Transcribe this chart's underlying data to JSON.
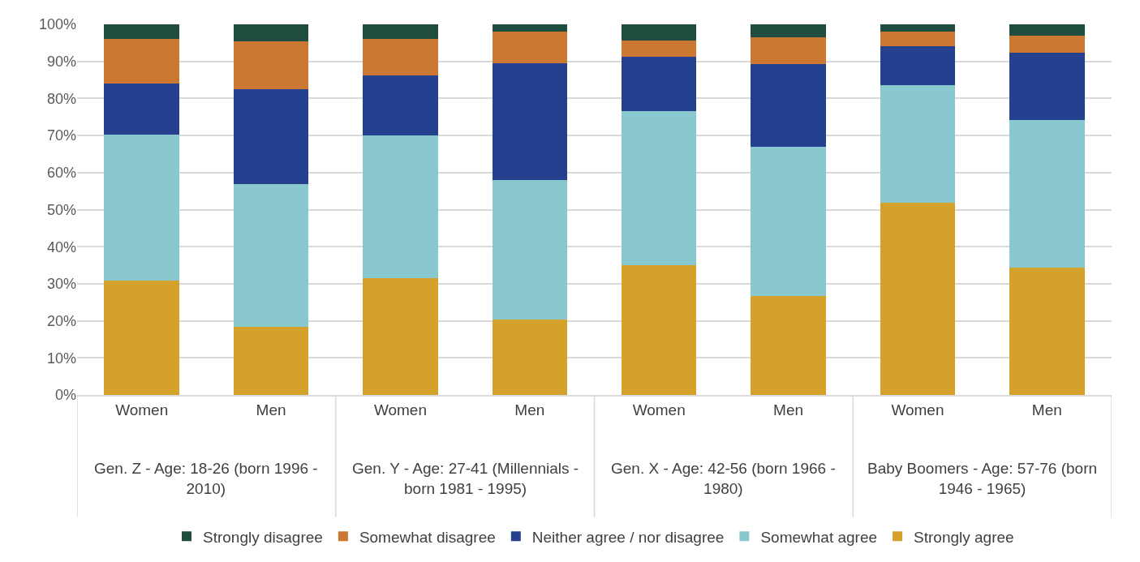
{
  "chart_data": {
    "type": "bar",
    "stacked": true,
    "categories": [
      "Women",
      "Men",
      "Women",
      "Men",
      "Women",
      "Men",
      "Women",
      "Men"
    ],
    "series": [
      {
        "name": "Strongly agree",
        "color": "#d4a22a",
        "values": [
          30.9,
          18.3,
          31.6,
          20.4,
          35.0,
          26.8,
          51.9,
          34.3
        ]
      },
      {
        "name": "Somewhat agree",
        "color": "#88c8ce",
        "values": [
          39.4,
          38.6,
          38.5,
          37.6,
          41.6,
          40.1,
          31.6,
          39.8
        ]
      },
      {
        "name": "Neither agree / nor disagree",
        "color": "#25408f",
        "values": [
          13.8,
          25.5,
          16.2,
          31.5,
          14.6,
          22.4,
          10.5,
          18.3
        ]
      },
      {
        "name": "Somewhat disagree",
        "color": "#cc7732",
        "values": [
          12.0,
          13.0,
          9.8,
          8.6,
          4.5,
          7.3,
          4.1,
          4.5
        ]
      },
      {
        "name": "Strongly disagree",
        "color": "#1f4d40",
        "values": [
          3.9,
          4.6,
          3.9,
          1.9,
          4.3,
          3.4,
          1.9,
          3.1
        ]
      }
    ],
    "annotations": [
      "Gen. Z - Age: 18-26 (born 1996 - 2010)",
      "Gen. Y - Age: 27-41 (Millennials - born 1981 - 1995)",
      "Gen. X - Age: 42-56 (born 1966 - 1980)",
      "Baby Boomers - Age: 57-76 (born 1946 - 1965)"
    ],
    "ylim": [
      0,
      100
    ],
    "yticks": [
      {
        "value": 0,
        "label": "0%"
      },
      {
        "value": 10,
        "label": "10%"
      },
      {
        "value": 20,
        "label": "20%"
      },
      {
        "value": 30,
        "label": "30%"
      },
      {
        "value": 40,
        "label": "40%"
      },
      {
        "value": 50,
        "label": "50%"
      },
      {
        "value": 60,
        "label": "60%"
      },
      {
        "value": 70,
        "label": "70%"
      },
      {
        "value": 80,
        "label": "80%"
      },
      {
        "value": 90,
        "label": "90%"
      },
      {
        "value": 100,
        "label": "100%"
      }
    ],
    "grid": "y",
    "legend": "bottom"
  }
}
